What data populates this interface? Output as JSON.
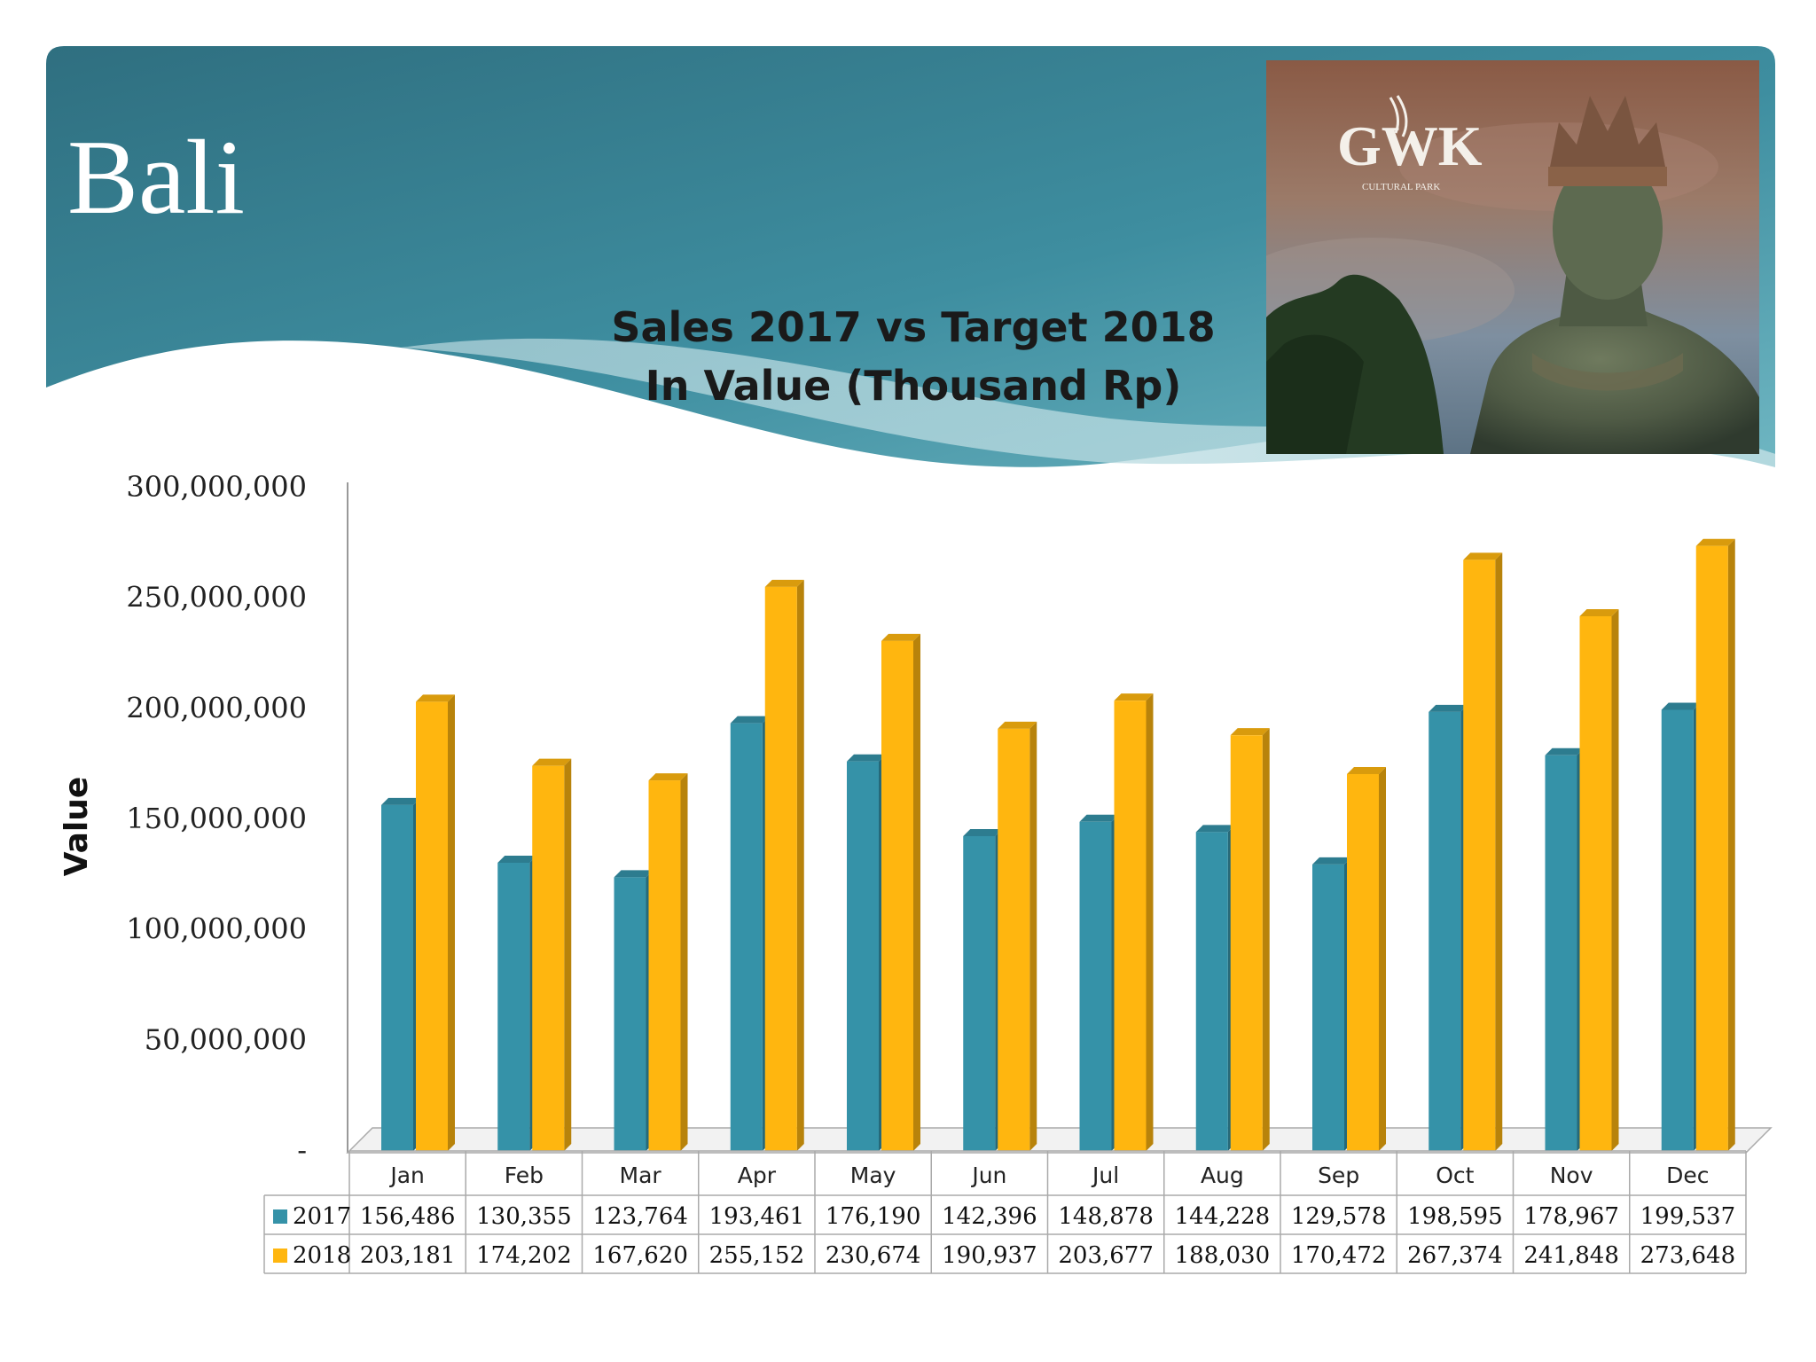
{
  "slide": {
    "title": "Bali"
  },
  "photo": {
    "logo_text": "GWK",
    "logo_subtext": "CULTURAL PARK"
  },
  "chart_data": {
    "type": "bar",
    "title_lines": [
      "Sales 2017 vs Target 2018",
      "In Value (Thousand Rp)"
    ],
    "ylabel": "Value",
    "xlabel": "",
    "ylim": [
      0,
      300000000
    ],
    "yticks": [
      0,
      50000000,
      100000000,
      150000000,
      200000000,
      250000000,
      300000000
    ],
    "ytick_labels": [
      "-",
      "50,000,000",
      "100,000,000",
      "150,000,000",
      "200,000,000",
      "250,000,000",
      "300,000,000"
    ],
    "categories": [
      "Jan",
      "Feb",
      "Mar",
      "Apr",
      "May",
      "Jun",
      "Jul",
      "Aug",
      "Sep",
      "Oct",
      "Nov",
      "Dec"
    ],
    "series": [
      {
        "name": "2017",
        "color": "#3592a8",
        "values": [
          156486,
          130355,
          123764,
          193461,
          176190,
          142396,
          148878,
          144228,
          129578,
          198595,
          178967,
          199537
        ],
        "table_labels": [
          "156,486",
          "130,355",
          "123,764",
          "193,461",
          "176,190",
          "142,396",
          "148,878",
          "144,228",
          "129,578",
          "198,595",
          "178,967",
          "199,537"
        ]
      },
      {
        "name": "2018",
        "color": "#ffb60f",
        "values": [
          203181,
          174202,
          167620,
          255152,
          230674,
          190937,
          203677,
          188030,
          170472,
          267374,
          241848,
          273648
        ],
        "table_labels": [
          "203,181",
          "174,202",
          "167,620",
          "255,152",
          "230,674",
          "190,937",
          "203,677",
          "188,030",
          "170,472",
          "267,374",
          "241,848",
          "273,648"
        ]
      }
    ],
    "data_table": true,
    "grid": false,
    "legend": "data-table"
  }
}
